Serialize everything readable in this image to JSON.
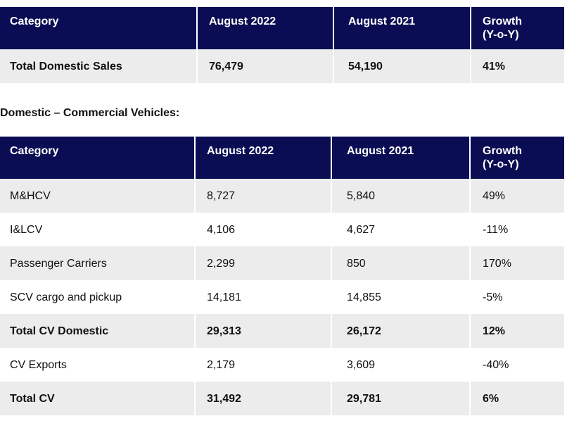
{
  "summary_table": {
    "headers": [
      "Category",
      "August 2022",
      "August 2021",
      "Growth\n(Y-o-Y)"
    ],
    "rows": [
      [
        "Total Domestic Sales",
        "76,479",
        "54,190",
        "41%"
      ]
    ]
  },
  "section_title_prefix": "Domestic – ",
  "section_title_main": "Commercial Vehicles:",
  "cv_table": {
    "headers": [
      "Category",
      "August 2022",
      "August 2021",
      "Growth\n(Y-o-Y)"
    ],
    "rows": [
      [
        "M&HCV",
        "8,727",
        "5,840",
        "49%"
      ],
      [
        "I&LCV",
        "4,106",
        "4,627",
        "-11%"
      ],
      [
        "Passenger Carriers",
        "2,299",
        "850",
        "170%"
      ],
      [
        "SCV cargo and pickup",
        "14,181",
        "14,855",
        "-5%"
      ],
      [
        "Total CV Domestic",
        "29,313",
        "26,172",
        "12%"
      ],
      [
        "CV Exports",
        "2,179",
        "3,609",
        "-40%"
      ],
      [
        "Total CV",
        "31,492",
        "29,781",
        "6%"
      ]
    ]
  },
  "colors": {
    "header_bg": "#0b0d54",
    "row_alt": "#ececec"
  }
}
